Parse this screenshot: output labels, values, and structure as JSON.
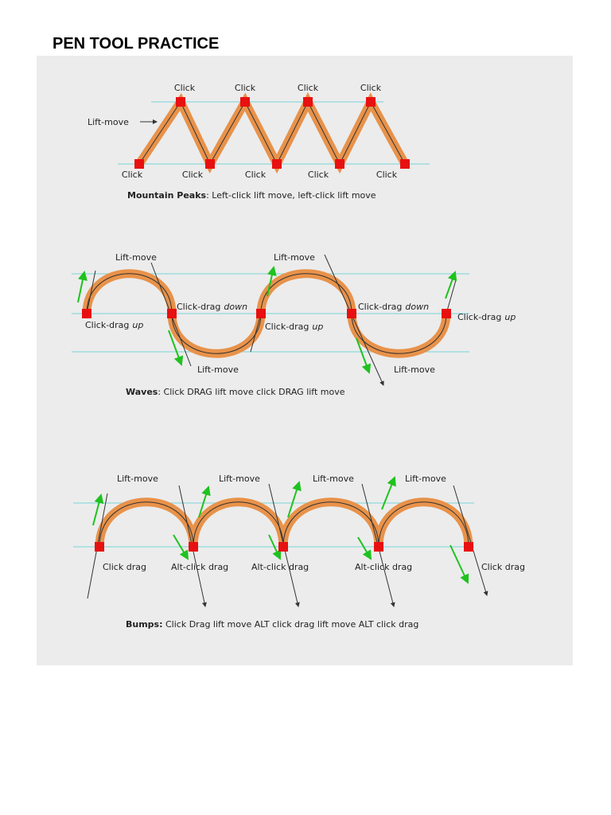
{
  "title": "PEN TOOL PRACTICE",
  "mountain": {
    "top_labels": [
      "Click",
      "Click",
      "Click",
      "Click"
    ],
    "side_label": "Lift-move",
    "bottom_labels": [
      "Click",
      "Click",
      "Click",
      "Click",
      "Click"
    ],
    "caption": {
      "bold": "Mountain Peaks",
      "text": ": Left-click lift move, left-click lift move"
    }
  },
  "waves": {
    "top_labels": [
      "Lift-move",
      "Lift-move"
    ],
    "point_labels": [
      {
        "text": "Click-drag",
        "emphasis": "up"
      },
      {
        "text": "Click-drag",
        "emphasis": "down"
      },
      {
        "text": "Click-drag",
        "emphasis": "up"
      },
      {
        "text": "Click-drag",
        "emphasis": "down"
      },
      {
        "text": "Click-drag",
        "emphasis": "up"
      }
    ],
    "bottom_labels": [
      "Lift-move",
      "Lift-move"
    ],
    "caption": {
      "bold": "Waves",
      "text": ": Click DRAG lift move click DRAG lift move"
    }
  },
  "bumps": {
    "top_labels": [
      "Lift-move",
      "Lift-move",
      "Lift-move",
      "Lift-move"
    ],
    "point_labels": [
      "Click drag",
      "Alt-click drag",
      "Alt-click drag",
      "Alt-click drag",
      "Click drag"
    ],
    "caption": {
      "bold": "Bumps:",
      "text": " Click Drag lift move ALT click drag lift move ALT click drag"
    }
  }
}
